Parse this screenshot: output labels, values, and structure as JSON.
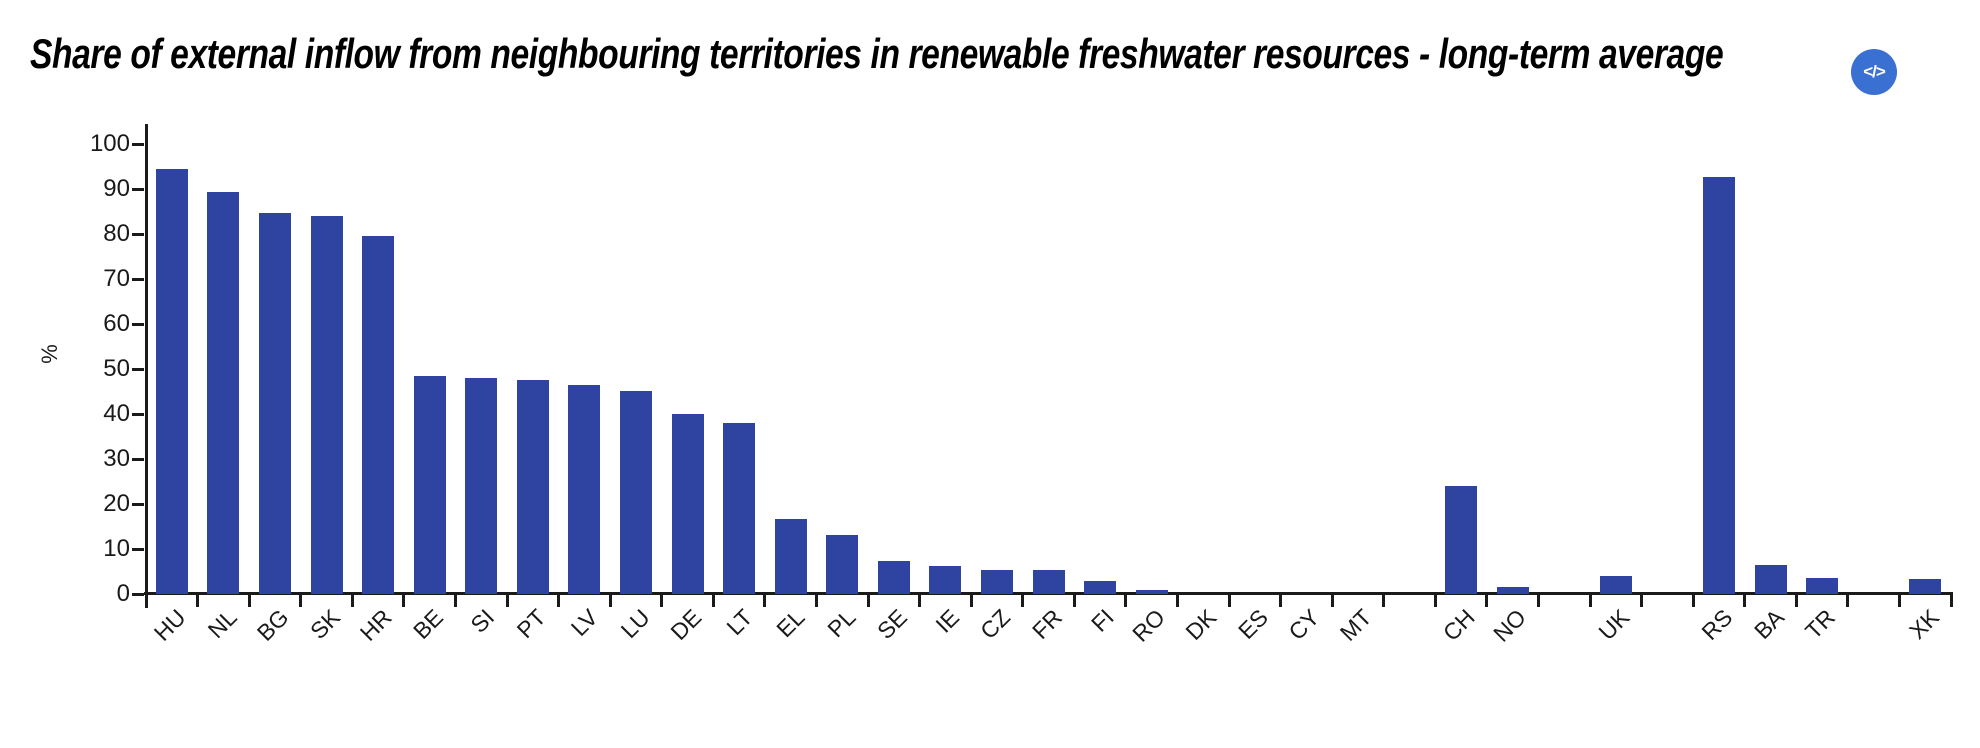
{
  "header": {
    "title": "Share of external inflow from neighbouring territories in renewable freshwater resources - long-term average",
    "embed_button": {
      "icon": "code-icon",
      "glyph": "</>",
      "bg_color": "#3b70d3"
    }
  },
  "chart_data": {
    "type": "bar",
    "title": "Share of external inflow from neighbouring territories in renewable freshwater resources - long-term average",
    "xlabel": "",
    "ylabel": "%",
    "ylim": [
      0,
      100
    ],
    "ytick_step": 10,
    "grid": false,
    "legend": "none",
    "bar_color": "#2e44a0",
    "axis_color": "#1a1a1a",
    "categories": [
      "HU",
      "NL",
      "BG",
      "SK",
      "HR",
      "BE",
      "SI",
      "PT",
      "LV",
      "LU",
      "DE",
      "LT",
      "EL",
      "PL",
      "SE",
      "IE",
      "CZ",
      "FR",
      "FI",
      "RO",
      "DK",
      "ES",
      "CY",
      "MT",
      "",
      "CH",
      "NO",
      "",
      "UK",
      "",
      "RS",
      "BA",
      "TR",
      "",
      "XK"
    ],
    "values": [
      94.5,
      89.3,
      84.6,
      83.9,
      79.5,
      48.4,
      48.0,
      47.6,
      46.5,
      45.0,
      40.1,
      37.9,
      16.6,
      13.0,
      7.4,
      6.3,
      5.4,
      5.3,
      2.8,
      0.9,
      0,
      0,
      0,
      0,
      null,
      24.0,
      1.6,
      null,
      4.0,
      null,
      92.7,
      6.4,
      3.6,
      null,
      3.3
    ]
  }
}
